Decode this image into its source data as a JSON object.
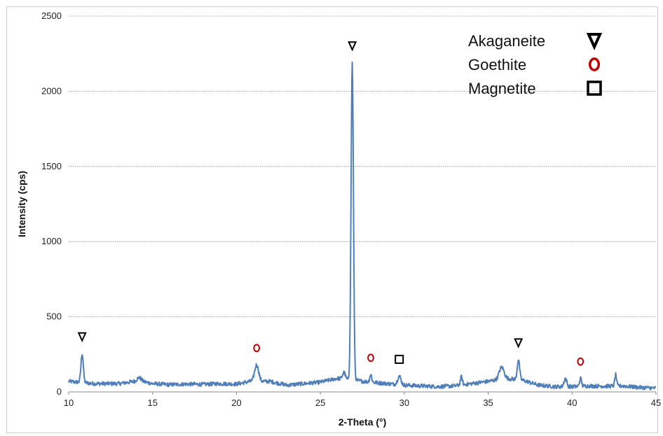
{
  "chart_data": {
    "type": "line",
    "xlabel": "2-Theta  (°)",
    "ylabel": "Intensity (cps)",
    "xlim": [
      10,
      45
    ],
    "ylim": [
      0,
      2500
    ],
    "x_ticks": [
      "10",
      "15",
      "20",
      "25",
      "30",
      "35",
      "40",
      "45"
    ],
    "y_ticks": [
      "0",
      "500",
      "1000",
      "1500",
      "2000",
      "2500"
    ],
    "grid": "horizontal",
    "legend_position": "top-right",
    "series_color": "#4f7fba",
    "baseline": [
      [
        10,
        70
      ],
      [
        11.5,
        55
      ],
      [
        13,
        55
      ],
      [
        14.2,
        75
      ],
      [
        15,
        55
      ],
      [
        16,
        48
      ],
      [
        17,
        52
      ],
      [
        18,
        50
      ],
      [
        19,
        55
      ],
      [
        20,
        52
      ],
      [
        20.8,
        70
      ],
      [
        22,
        70
      ],
      [
        23,
        45
      ],
      [
        24,
        55
      ],
      [
        25,
        65
      ],
      [
        26,
        90
      ],
      [
        28,
        65
      ],
      [
        29,
        55
      ],
      [
        30,
        45
      ],
      [
        31,
        40
      ],
      [
        32,
        35
      ],
      [
        33,
        40
      ],
      [
        34,
        55
      ],
      [
        35,
        70
      ],
      [
        36,
        90
      ],
      [
        37,
        80
      ],
      [
        38,
        45
      ],
      [
        39,
        35
      ],
      [
        40,
        35
      ],
      [
        41,
        40
      ],
      [
        42,
        38
      ],
      [
        43,
        40
      ],
      [
        44,
        30
      ],
      [
        45,
        25
      ]
    ],
    "peaks": [
      {
        "x": 10.8,
        "y": 255,
        "w": 0.07
      },
      {
        "x": 14.2,
        "y": 95,
        "w": 0.12
      },
      {
        "x": 21.2,
        "y": 180,
        "w": 0.12
      },
      {
        "x": 26.4,
        "y": 130,
        "w": 0.08
      },
      {
        "x": 26.9,
        "y": 2190,
        "w": 0.07
      },
      {
        "x": 28.0,
        "y": 115,
        "w": 0.06
      },
      {
        "x": 29.7,
        "y": 105,
        "w": 0.1
      },
      {
        "x": 33.4,
        "y": 100,
        "w": 0.06
      },
      {
        "x": 35.8,
        "y": 165,
        "w": 0.14
      },
      {
        "x": 36.8,
        "y": 215,
        "w": 0.07
      },
      {
        "x": 39.6,
        "y": 90,
        "w": 0.08
      },
      {
        "x": 40.5,
        "y": 90,
        "w": 0.06
      },
      {
        "x": 42.6,
        "y": 115,
        "w": 0.05
      }
    ],
    "markers": [
      {
        "phase": "akaganeite",
        "x": 10.8,
        "y": 255
      },
      {
        "phase": "goethite",
        "x": 21.2,
        "y": 180
      },
      {
        "phase": "akaganeite",
        "x": 26.9,
        "y": 2190
      },
      {
        "phase": "goethite",
        "x": 28.0,
        "y": 115
      },
      {
        "phase": "magnetite",
        "x": 29.7,
        "y": 105
      },
      {
        "phase": "akaganeite",
        "x": 36.8,
        "y": 215
      },
      {
        "phase": "goethite",
        "x": 40.5,
        "y": 90
      }
    ],
    "legend": [
      {
        "label": "Akaganeite",
        "symbol": "down-triangle",
        "color": "#000000"
      },
      {
        "label": "Goethite",
        "symbol": "circle",
        "color": "#c00000"
      },
      {
        "label": "Magnetite",
        "symbol": "square",
        "color": "#000000"
      }
    ]
  }
}
